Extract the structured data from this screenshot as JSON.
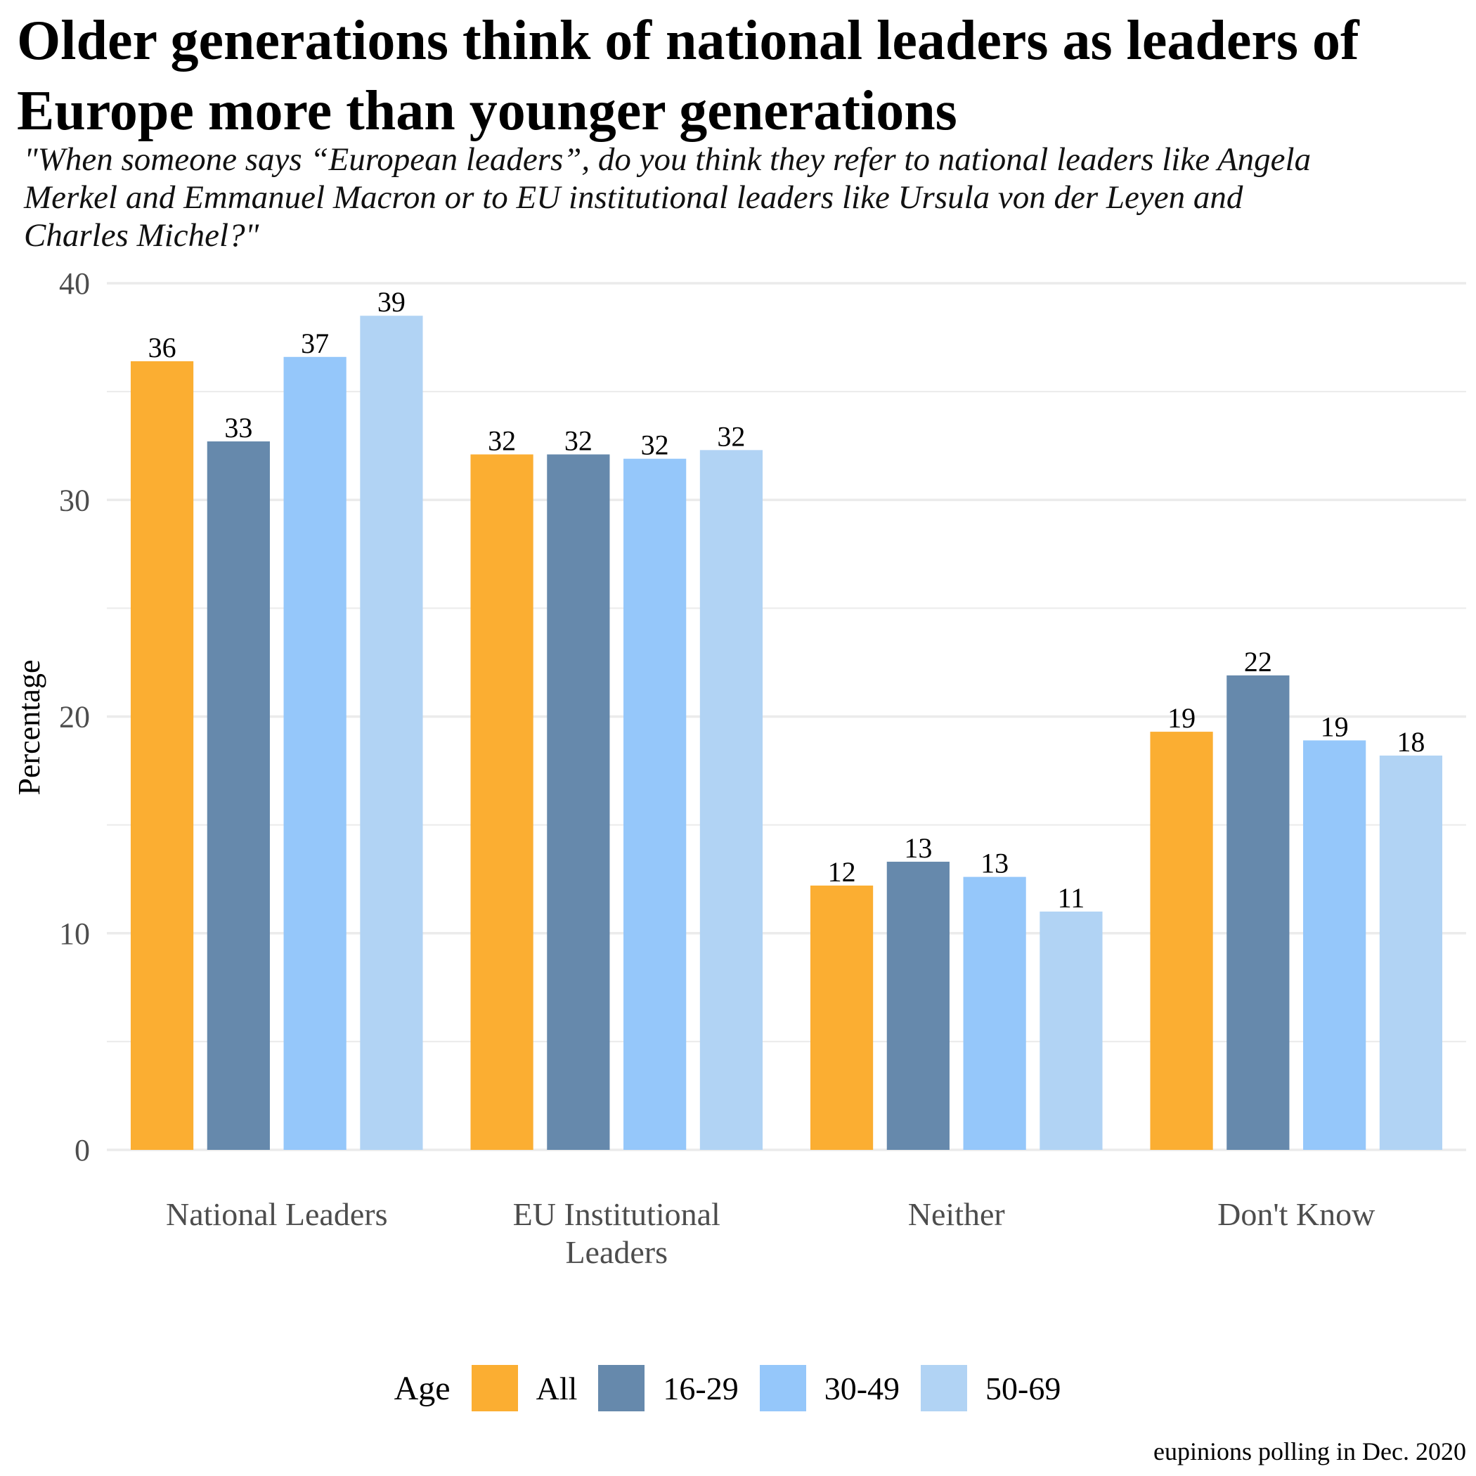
{
  "chart_data": {
    "type": "bar",
    "title": "Older generations think of national leaders as leaders of\n Europe more than younger generations",
    "subtitle": "\"When someone says “European leaders”, do you think they refer to national leaders like Angela\n Merkel and Emmanuel Macron or to EU institutional leaders like Ursula von der Leyen and\n Charles Michel?\"",
    "ylabel": "Percentage",
    "xlabel": "",
    "ylim": [
      0,
      40
    ],
    "yticks": [
      0,
      10,
      20,
      30,
      40
    ],
    "categories": [
      [
        "National Leaders"
      ],
      [
        "EU Institutional",
        "Leaders"
      ],
      [
        "Neither"
      ],
      [
        "Don't Know"
      ]
    ],
    "series": [
      {
        "name": "All",
        "color": "#FBAE32",
        "values": [
          36.4,
          32.1,
          12.2,
          19.3
        ],
        "labels": [
          "36",
          "32",
          "12",
          "19"
        ]
      },
      {
        "name": "16-29",
        "color": "#6689AC",
        "values": [
          32.7,
          32.1,
          13.3,
          21.9
        ],
        "labels": [
          "33",
          "32",
          "13",
          "22"
        ]
      },
      {
        "name": "30-49",
        "color": "#95C7FA",
        "values": [
          36.6,
          31.9,
          12.6,
          18.9
        ],
        "labels": [
          "37",
          "32",
          "13",
          "19"
        ]
      },
      {
        "name": "50-69",
        "color": "#B1D3F4",
        "values": [
          38.5,
          32.3,
          11.0,
          18.2
        ],
        "labels": [
          "39",
          "32",
          "11",
          "18"
        ]
      }
    ],
    "legend_title": "Age",
    "legend_position": "bottom",
    "caption": "eupinions polling in Dec. 2020",
    "grid": true
  }
}
